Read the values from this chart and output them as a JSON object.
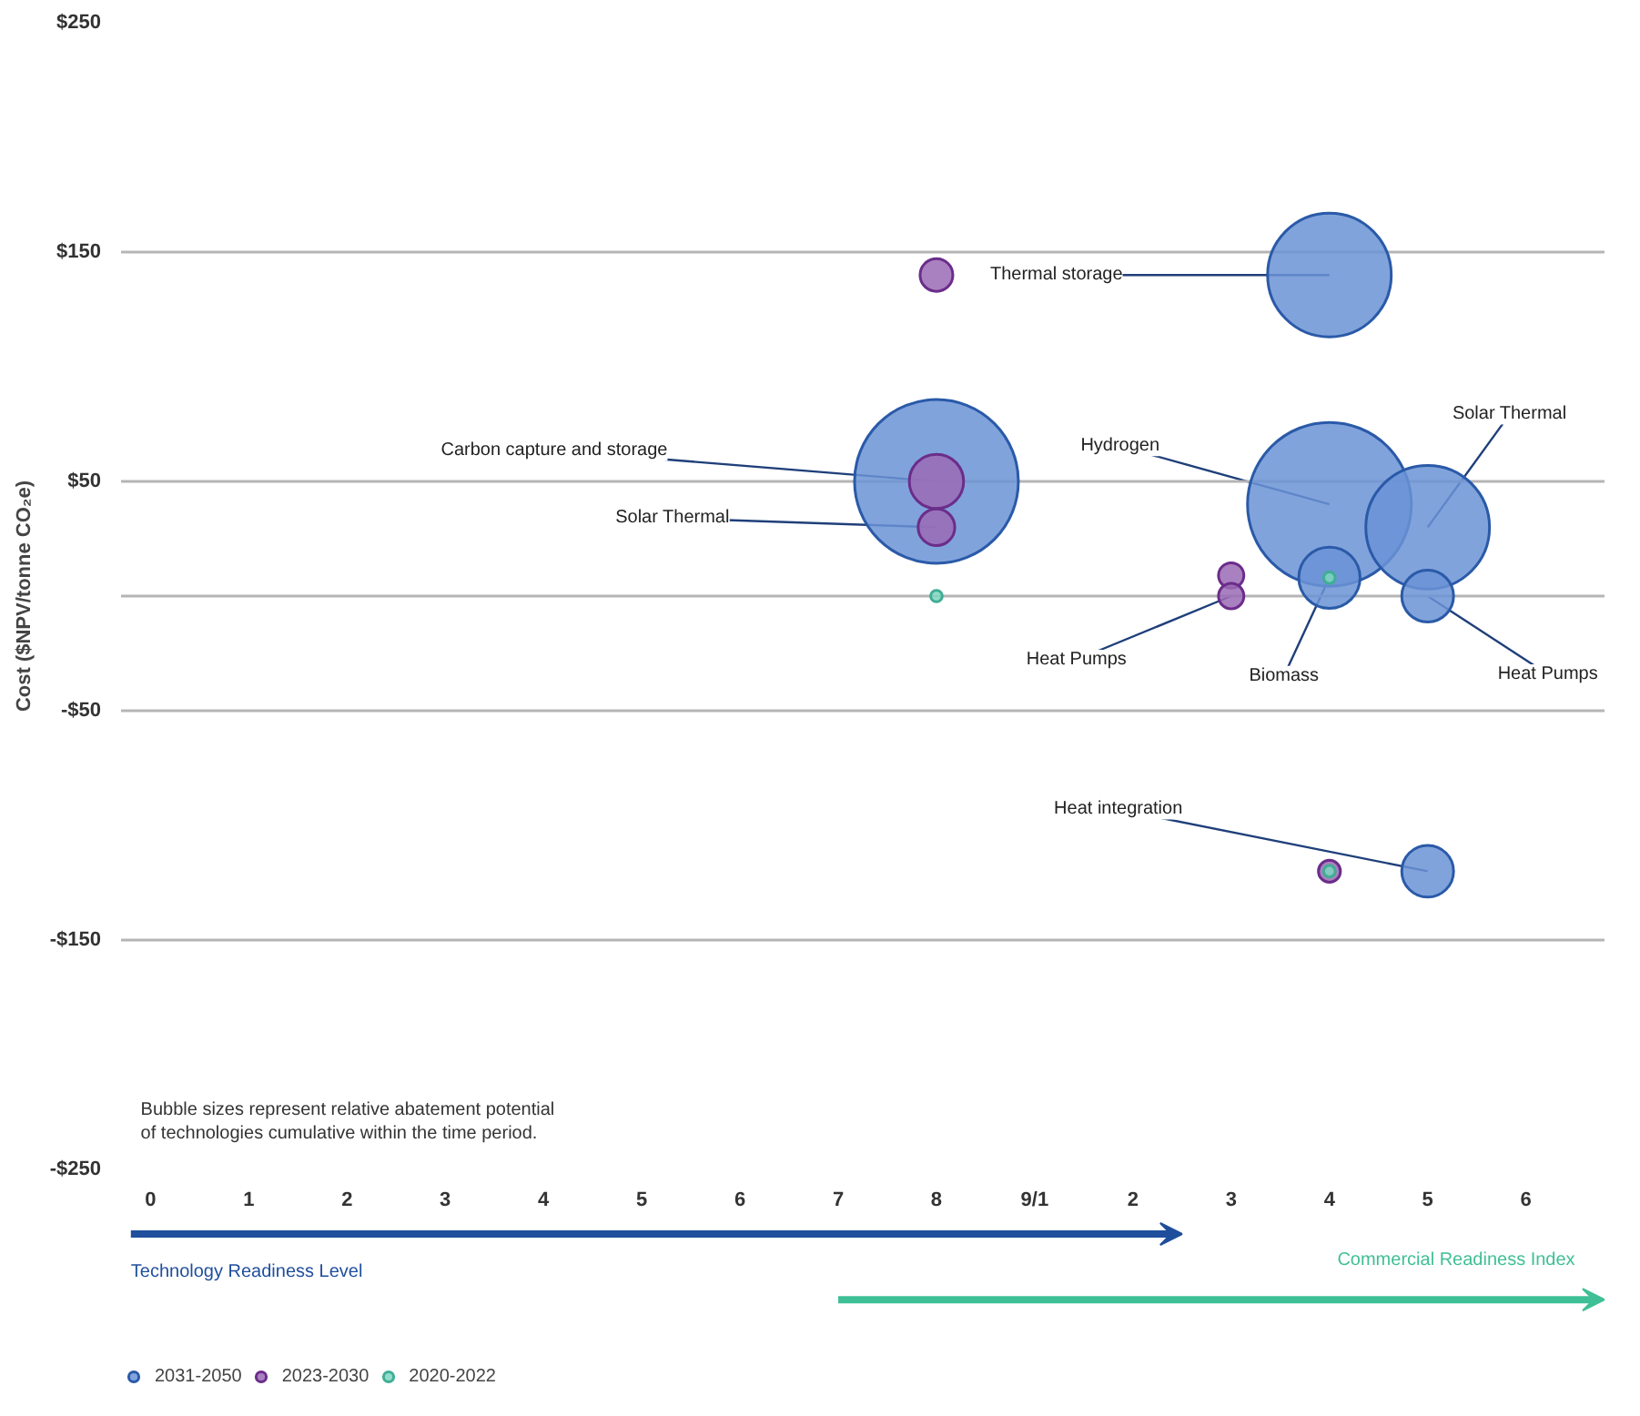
{
  "chart_data": {
    "type": "bubble",
    "ylabel": "Cost ($NPV/tonne CO₂e)",
    "xlim": [
      -0.3,
      14.8
    ],
    "xticks": [
      0,
      1,
      2,
      3,
      4,
      5,
      6,
      7,
      8,
      {
        "value": 9,
        "label": "9/1"
      }
    ],
    "x2lim": [
      -8.3,
      6.8
    ],
    "x2ticks": [
      2,
      3,
      4,
      5,
      6
    ],
    "ylim": [
      -250,
      250
    ],
    "yticks": [
      {
        "value": 250,
        "label": "$250"
      },
      {
        "value": 150,
        "label": "$150"
      },
      {
        "value": 50,
        "label": "$50"
      },
      {
        "value": 0,
        "label": null
      },
      {
        "value": -50,
        "label": "-$50"
      },
      {
        "value": -150,
        "label": "-$150"
      },
      {
        "value": -250,
        "label": "-$250"
      }
    ],
    "grid": "y",
    "legend": "bottom left",
    "series": [
      {
        "name": "2031-2050",
        "color": "#6b93d6",
        "x": [
          8,
          12,
          12,
          13,
          12,
          13,
          13
        ],
        "values": [
          50,
          140,
          40,
          30,
          8,
          0,
          -120
        ],
        "sizes": [
          1.0,
          0.57,
          1.0,
          0.57,
          0.14,
          0.1,
          0.1
        ]
      },
      {
        "name": "2023-2030",
        "color": "#9b6bb5",
        "x": [
          8,
          8,
          8,
          11,
          11,
          12
        ],
        "values": [
          140,
          50,
          30,
          9,
          0,
          -120
        ],
        "sizes": [
          0.04,
          0.11,
          0.05,
          0.024,
          0.024,
          0.018
        ]
      },
      {
        "name": "2020-2022",
        "color": "#7fd6c0",
        "x": [
          8,
          12,
          12
        ],
        "values": [
          0,
          8,
          -120
        ],
        "sizes": [
          0.005,
          0.005,
          0.005
        ]
      }
    ],
    "annotations": [
      {
        "text": "Thermal storage",
        "x": 12,
        "y": 140
      },
      {
        "text": "Carbon capture and storage",
        "x": 8,
        "y": 50
      },
      {
        "text": "Solar Thermal",
        "x": 8,
        "y": 30
      },
      {
        "text": "Hydrogen",
        "x": 12,
        "y": 40
      },
      {
        "text": "Solar Thermal",
        "x": 13,
        "y": 30
      },
      {
        "text": "Heat Pumps",
        "x": 11,
        "y": 0
      },
      {
        "text": "Biomass",
        "x": 12,
        "y": 8
      },
      {
        "text": "Heat Pumps",
        "x": 13,
        "y": 0
      },
      {
        "text": "Heat integration",
        "x": 13,
        "y": -120
      },
      "Bubble sizes represent relative abatement potential\nof technologies cumulative within the time period.",
      "Technology Readiness Level",
      "Commercial Readiness Index"
    ]
  }
}
